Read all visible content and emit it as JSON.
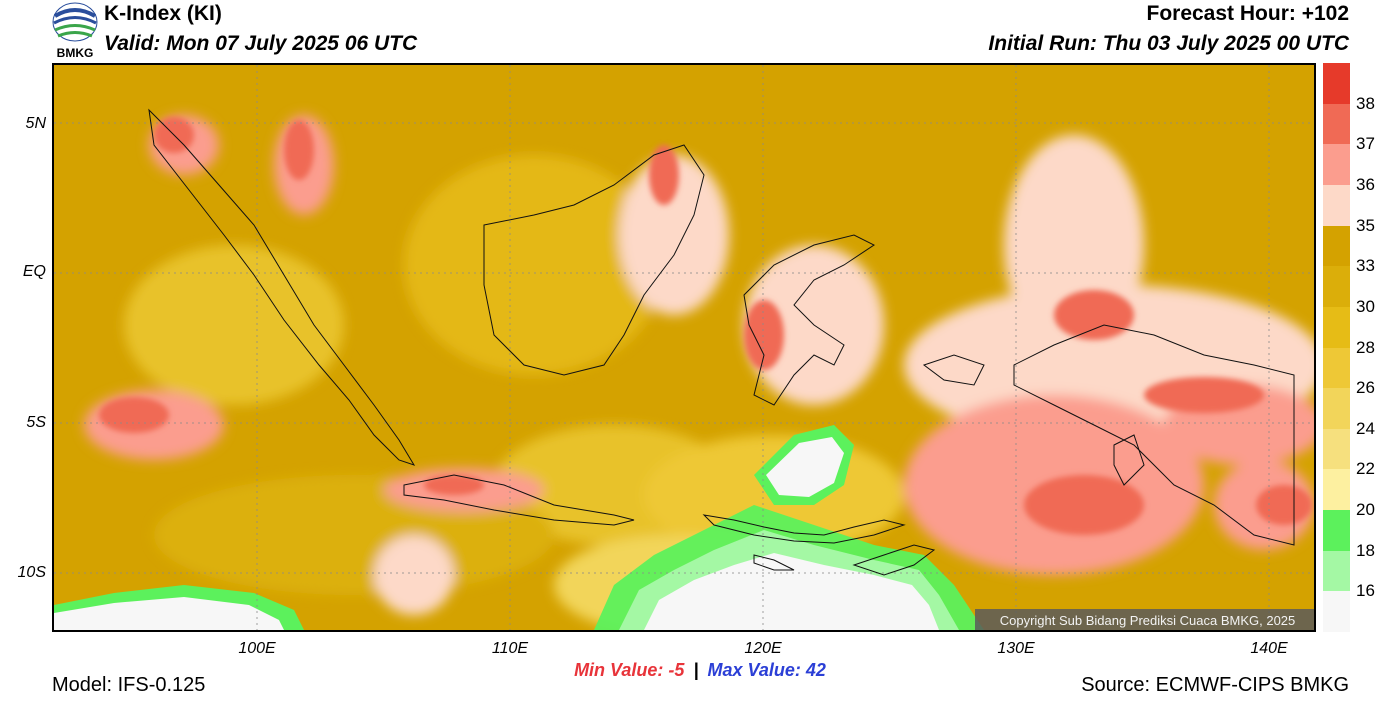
{
  "header": {
    "title": "K-Index (KI)",
    "valid": "Valid: Mon 07 July 2025 06 UTC",
    "forecast_hour": "Forecast Hour: +102",
    "initial_run": "Initial Run: Thu 03 July 2025 00 UTC",
    "logo_text": "BMKG"
  },
  "map": {
    "lat_labels": [
      "5N",
      "EQ",
      "5S",
      "10S"
    ],
    "lon_labels": [
      "100E",
      "110E",
      "120E",
      "130E",
      "140E"
    ],
    "copyright": "Copyright Sub Bidang Prediksi Cuaca BMKG, 2025"
  },
  "colorbar": {
    "labels": [
      "38",
      "37",
      "36",
      "35",
      "33",
      "30",
      "28",
      "26",
      "24",
      "22",
      "20",
      "18",
      "16"
    ],
    "colors": [
      "#e63a2a",
      "#f06a55",
      "#fb9d8e",
      "#fdd9c8",
      "#d4a200",
      "#dbae0a",
      "#e6bc16",
      "#eec836",
      "#f2d55a",
      "#f6e07e",
      "#fdf0a0",
      "#5cf15c",
      "#a4f8a4",
      "#f7f7f7"
    ]
  },
  "stats": {
    "min_label": "Min Value:",
    "min_value": "-5",
    "separator": "|",
    "max_label": "Max Value:",
    "max_value": "42"
  },
  "footer": {
    "model": "Model: IFS-0.125",
    "source": "Source: ECMWF-CIPS BMKG"
  }
}
